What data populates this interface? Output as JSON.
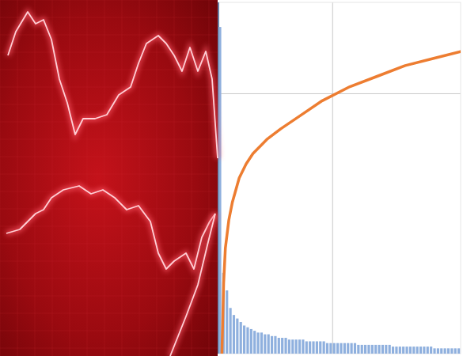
{
  "chart_data": {
    "type": "histogram",
    "bins": [
      0,
      1,
      2,
      3,
      4,
      5,
      6,
      7,
      8,
      9,
      10,
      11,
      12,
      13,
      14,
      15,
      16,
      17,
      18,
      19,
      20,
      21,
      22,
      23,
      24,
      25,
      26,
      27,
      28,
      29,
      30,
      31,
      32,
      33,
      34,
      35,
      36,
      37,
      38,
      39,
      40,
      41,
      42,
      43,
      44,
      45,
      46,
      47,
      48,
      49,
      50,
      51,
      52,
      53,
      54,
      55,
      56,
      57,
      58,
      59,
      60,
      61,
      62,
      63,
      64,
      65,
      66,
      67,
      68,
      69,
      70
    ],
    "counts": [
      93,
      23,
      18,
      13,
      11,
      10,
      9,
      8,
      7.5,
      7,
      6.5,
      6,
      6,
      5.5,
      5.5,
      5,
      5,
      4.5,
      4.5,
      4.5,
      4,
      4,
      4,
      4,
      4,
      3.5,
      3.5,
      3.5,
      3.5,
      3.5,
      3.5,
      3,
      3,
      3,
      3,
      3,
      3,
      3,
      3,
      3,
      2.5,
      2.5,
      2.5,
      2.5,
      2.5,
      2.5,
      2.5,
      2.5,
      2.5,
      2.5,
      2,
      2,
      2,
      2,
      2,
      2,
      2,
      2,
      2,
      2,
      2,
      2,
      1.5,
      1.5,
      1.5,
      1.5,
      1.5,
      1.5,
      1.5,
      1.5
    ],
    "color": "#8fb0de",
    "xlim": [
      0,
      70
    ],
    "xticks": [
      33
    ],
    "ylim": [
      0,
      100
    ],
    "yticks": [
      74
    ],
    "y2lim": [
      0,
      100
    ],
    "grid": true,
    "tick_labels": false,
    "series": [
      {
        "type": "line",
        "color": "#ed7d31",
        "axis": "y2",
        "x": [
          1,
          1.5,
          2,
          3,
          4,
          6,
          8,
          10,
          14,
          18,
          24,
          30,
          38,
          46,
          54,
          62,
          70
        ],
        "values": [
          0,
          20,
          30,
          38,
          43,
          50,
          54,
          57,
          61,
          64,
          68,
          72,
          76,
          79,
          82,
          84,
          86
        ]
      }
    ]
  }
}
